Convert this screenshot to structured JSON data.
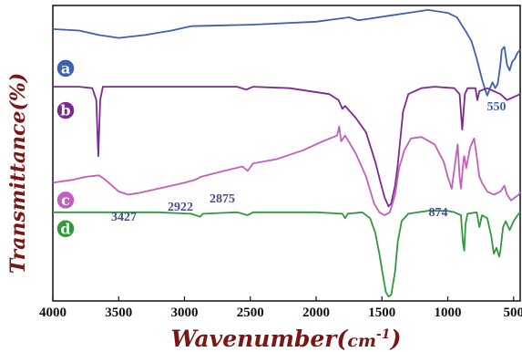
{
  "chart_data": {
    "type": "line",
    "xlabel_main": "Wavenumber(",
    "xlabel_unit": "cm",
    "xlabel_exp": "-1",
    "xlabel_close": ")",
    "ylabel": "Transmittance(%)",
    "xlim": [
      4000,
      450
    ],
    "x_ticks": [
      "4000",
      "3500",
      "3000",
      "2500",
      "2000",
      "1500",
      "1000",
      "500"
    ],
    "x_tick_values": [
      4000,
      3500,
      3000,
      2500,
      2000,
      1500,
      1000,
      500
    ],
    "ylim": [
      0,
      100
    ],
    "grid": false,
    "legend": "none",
    "series": [
      {
        "name": "a",
        "color": "#3f5fb0",
        "points": [
          [
            4000,
            92
          ],
          [
            3800,
            91.5
          ],
          [
            3650,
            90
          ],
          [
            3500,
            89
          ],
          [
            3300,
            90
          ],
          [
            3100,
            91.5
          ],
          [
            2950,
            93
          ],
          [
            2500,
            93.5
          ],
          [
            2000,
            94.5
          ],
          [
            1750,
            96
          ],
          [
            1680,
            95
          ],
          [
            1600,
            95.5
          ],
          [
            1450,
            96.5
          ],
          [
            1300,
            97.5
          ],
          [
            1150,
            98.5
          ],
          [
            1000,
            97.5
          ],
          [
            930,
            96
          ],
          [
            860,
            91
          ],
          [
            820,
            88
          ],
          [
            780,
            82
          ],
          [
            740,
            75
          ],
          [
            720,
            72
          ],
          [
            700,
            69.5
          ],
          [
            680,
            72
          ],
          [
            660,
            74
          ],
          [
            640,
            72
          ],
          [
            620,
            73.5
          ],
          [
            600,
            80
          ],
          [
            590,
            85
          ],
          [
            570,
            86
          ],
          [
            550,
            80
          ],
          [
            530,
            78
          ],
          [
            510,
            81
          ],
          [
            490,
            82
          ],
          [
            470,
            84
          ],
          [
            450,
            85
          ]
        ]
      },
      {
        "name": "b",
        "color": "#7b2a94",
        "points": [
          [
            4000,
            72.5
          ],
          [
            3800,
            72.5
          ],
          [
            3700,
            72
          ],
          [
            3670,
            68
          ],
          [
            3655,
            49
          ],
          [
            3640,
            68
          ],
          [
            3620,
            72.5
          ],
          [
            3400,
            72.5
          ],
          [
            3000,
            72.5
          ],
          [
            2600,
            72.5
          ],
          [
            2530,
            71.5
          ],
          [
            2480,
            72.5
          ],
          [
            2200,
            72
          ],
          [
            1900,
            70
          ],
          [
            1830,
            68
          ],
          [
            1800,
            65
          ],
          [
            1780,
            66
          ],
          [
            1700,
            62
          ],
          [
            1620,
            57
          ],
          [
            1550,
            47
          ],
          [
            1510,
            40
          ],
          [
            1480,
            35
          ],
          [
            1450,
            32
          ],
          [
            1430,
            33
          ],
          [
            1400,
            39
          ],
          [
            1380,
            46
          ],
          [
            1360,
            55
          ],
          [
            1340,
            64
          ],
          [
            1300,
            70
          ],
          [
            1200,
            72
          ],
          [
            1100,
            72.5
          ],
          [
            950,
            72
          ],
          [
            910,
            70
          ],
          [
            890,
            58
          ],
          [
            870,
            70
          ],
          [
            850,
            72
          ],
          [
            790,
            72
          ],
          [
            775,
            68
          ],
          [
            760,
            71
          ],
          [
            700,
            72
          ],
          [
            600,
            70
          ],
          [
            550,
            68
          ],
          [
            500,
            69
          ],
          [
            450,
            70
          ]
        ]
      },
      {
        "name": "c",
        "color": "#c15fbe",
        "points": [
          [
            4000,
            40
          ],
          [
            3850,
            41
          ],
          [
            3750,
            42
          ],
          [
            3650,
            42.5
          ],
          [
            3600,
            41
          ],
          [
            3500,
            37
          ],
          [
            3427,
            36
          ],
          [
            3350,
            36.5
          ],
          [
            3200,
            38
          ],
          [
            3000,
            40
          ],
          [
            2922,
            41
          ],
          [
            2875,
            42
          ],
          [
            2700,
            44
          ],
          [
            2560,
            45.5
          ],
          [
            2520,
            44
          ],
          [
            2480,
            46.5
          ],
          [
            2300,
            48
          ],
          [
            2100,
            51
          ],
          [
            1950,
            54
          ],
          [
            1840,
            56
          ],
          [
            1825,
            59
          ],
          [
            1810,
            54
          ],
          [
            1780,
            56
          ],
          [
            1700,
            50
          ],
          [
            1620,
            42
          ],
          [
            1560,
            33
          ],
          [
            1520,
            30
          ],
          [
            1480,
            29
          ],
          [
            1440,
            30
          ],
          [
            1400,
            36
          ],
          [
            1370,
            45
          ],
          [
            1330,
            51
          ],
          [
            1280,
            55
          ],
          [
            1200,
            55.5
          ],
          [
            1100,
            53
          ],
          [
            1030,
            47
          ],
          [
            1000,
            42
          ],
          [
            970,
            38
          ],
          [
            940,
            48
          ],
          [
            925,
            53
          ],
          [
            910,
            42
          ],
          [
            900,
            38
          ],
          [
            880,
            48
          ],
          [
            874,
            49
          ],
          [
            860,
            45
          ],
          [
            830,
            52
          ],
          [
            800,
            55
          ],
          [
            780,
            49
          ],
          [
            760,
            42
          ],
          [
            740,
            40
          ],
          [
            700,
            37
          ],
          [
            650,
            36
          ],
          [
            600,
            37
          ],
          [
            570,
            39
          ],
          [
            550,
            36
          ],
          [
            520,
            34
          ],
          [
            490,
            35
          ],
          [
            460,
            36
          ],
          [
            450,
            37
          ]
        ]
      },
      {
        "name": "d",
        "color": "#2e9a3c",
        "points": [
          [
            4000,
            30
          ],
          [
            3600,
            30
          ],
          [
            3200,
            30
          ],
          [
            2950,
            29.5
          ],
          [
            2880,
            28.5
          ],
          [
            2860,
            29.5
          ],
          [
            2600,
            30
          ],
          [
            2520,
            29
          ],
          [
            2480,
            30
          ],
          [
            2000,
            30
          ],
          [
            1800,
            29.5
          ],
          [
            1780,
            28
          ],
          [
            1760,
            29.5
          ],
          [
            1650,
            30
          ],
          [
            1590,
            28
          ],
          [
            1550,
            23
          ],
          [
            1520,
            16
          ],
          [
            1490,
            8
          ],
          [
            1470,
            3
          ],
          [
            1450,
            1.5
          ],
          [
            1430,
            2
          ],
          [
            1400,
            10
          ],
          [
            1380,
            20
          ],
          [
            1350,
            27
          ],
          [
            1300,
            29.5
          ],
          [
            1150,
            30.5
          ],
          [
            1000,
            30.5
          ],
          [
            950,
            30
          ],
          [
            900,
            29
          ],
          [
            885,
            20
          ],
          [
            875,
            17
          ],
          [
            865,
            26
          ],
          [
            850,
            29.5
          ],
          [
            780,
            30
          ],
          [
            760,
            25
          ],
          [
            740,
            29
          ],
          [
            700,
            28
          ],
          [
            670,
            22
          ],
          [
            650,
            16
          ],
          [
            630,
            18
          ],
          [
            610,
            15
          ],
          [
            600,
            17
          ],
          [
            580,
            25
          ],
          [
            560,
            27
          ],
          [
            530,
            24
          ],
          [
            500,
            27
          ],
          [
            470,
            29
          ],
          [
            450,
            30
          ]
        ]
      }
    ],
    "badges": [
      "a",
      "b",
      "c",
      "d"
    ],
    "annotations": [
      {
        "text": "550",
        "series": "a"
      },
      {
        "text": "3427",
        "series": "c"
      },
      {
        "text": "2922",
        "series": "c"
      },
      {
        "text": "2875",
        "series": "c"
      },
      {
        "text": "874",
        "series": "c"
      }
    ]
  }
}
